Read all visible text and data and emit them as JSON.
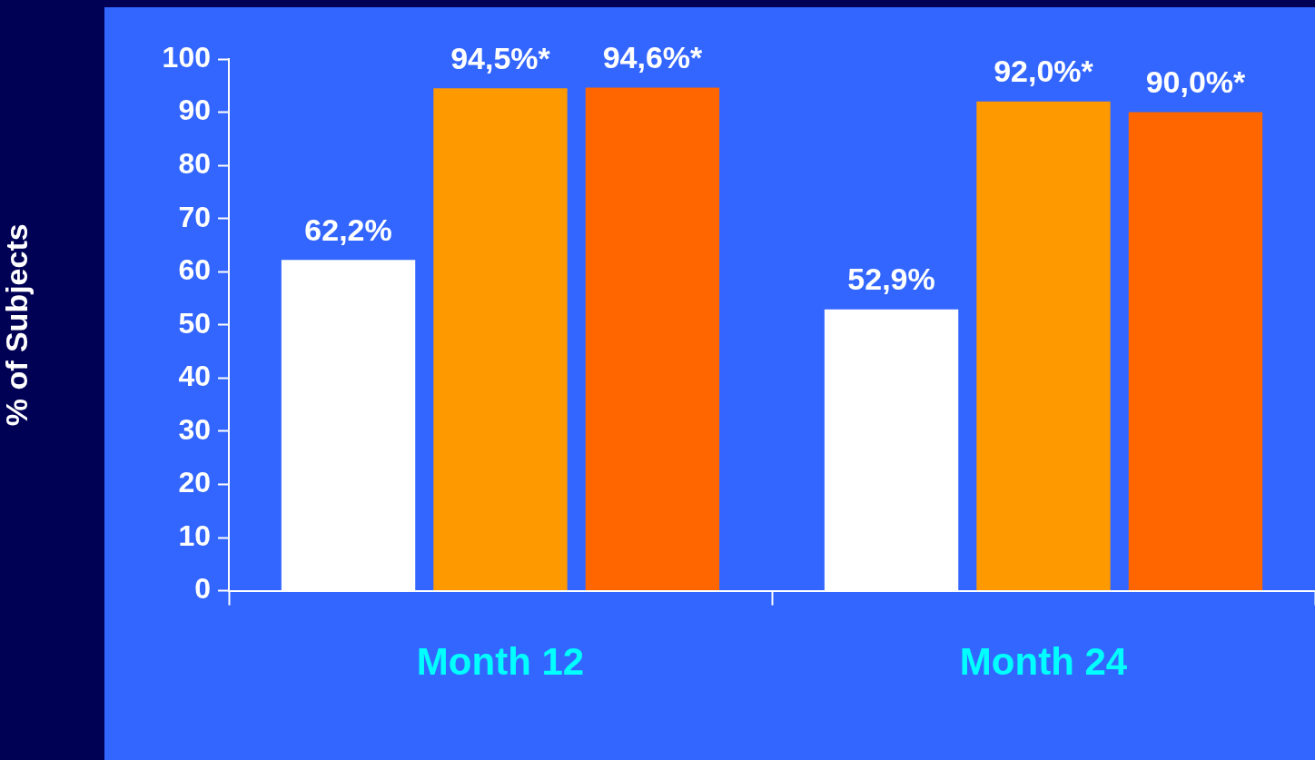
{
  "chart_data": {
    "type": "bar",
    "ylabel": "% of Subjects",
    "categories": [
      "Month 12",
      "Month 24"
    ],
    "series": [
      {
        "color": "#ffffff",
        "values": [
          62.2,
          52.9
        ],
        "value_labels": [
          "62,2%",
          "52,9%"
        ]
      },
      {
        "color": "#ff9900",
        "values": [
          94.5,
          92.0
        ],
        "value_labels": [
          "94,5%*",
          "92,0%*"
        ]
      },
      {
        "color": "#ff6600",
        "values": [
          94.6,
          90.0
        ],
        "value_labels": [
          "94,6%*",
          "90,0%*"
        ]
      }
    ],
    "ylim": [
      0,
      100
    ],
    "yticks": [
      0,
      10,
      20,
      30,
      40,
      50,
      60,
      70,
      80,
      90,
      100
    ],
    "grid": false,
    "legend": false
  }
}
